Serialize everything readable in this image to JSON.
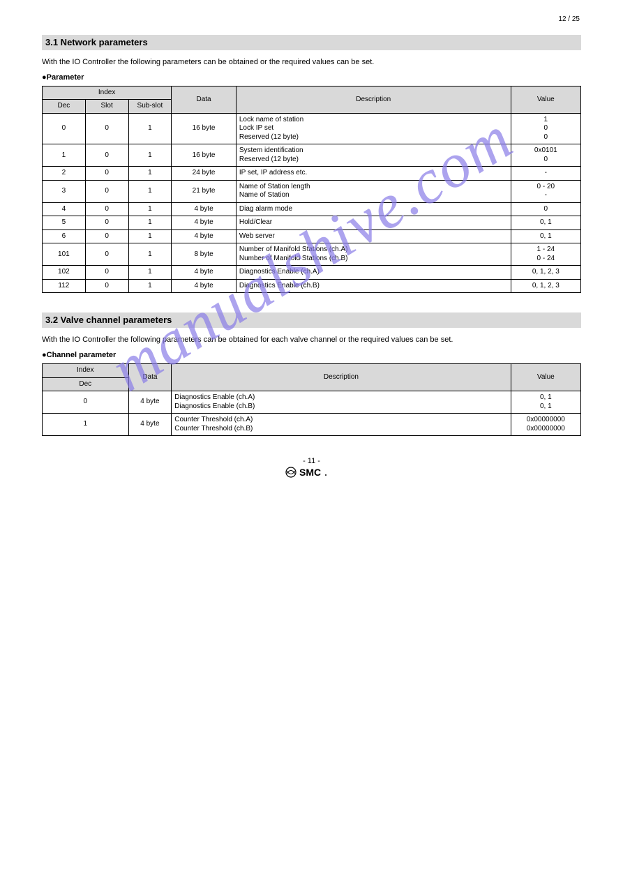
{
  "page_number_top": "12 / 25",
  "watermark_text": "manualshive.com",
  "section1": {
    "banner": "3.1 Network parameters",
    "intro": "With the IO Controller the following parameters can be obtained or the required values can be set.",
    "subhead": "●Parameter",
    "table": {
      "col_widths_pct": [
        8,
        8,
        8,
        12,
        51,
        13
      ],
      "header_row1": [
        "Index",
        "",
        "",
        "Data",
        "Description",
        "Value"
      ],
      "header_row2": [
        "Dec",
        "Slot",
        "Sub-slot",
        "",
        "",
        ""
      ],
      "rows": [
        {
          "cells": [
            "0",
            "0",
            "1",
            "16 byte",
            "Lock name of station\nLock IP set\nReserved (12 byte)",
            "1\n0\n0"
          ],
          "value_align": "center"
        },
        {
          "cells": [
            "1",
            "0",
            "1",
            "16 byte",
            "System identification\nReserved (12 byte)",
            "0x0101\n0"
          ],
          "value_align": "center"
        },
        {
          "cells": [
            "2",
            "0",
            "1",
            "24 byte",
            "IP set, IP address etc.",
            "-"
          ],
          "value_align": "center"
        },
        {
          "cells": [
            "3",
            "0",
            "1",
            "21 byte",
            "Name of Station length\nName of Station",
            "0 - 20\n-"
          ],
          "value_align": "center"
        },
        {
          "cells": [
            "4",
            "0",
            "1",
            "4 byte",
            "Diag alarm mode",
            "0"
          ],
          "value_align": "center"
        },
        {
          "cells": [
            "5",
            "0",
            "1",
            "4 byte",
            "Hold/Clear",
            "0, 1"
          ],
          "value_align": "center"
        },
        {
          "cells": [
            "6",
            "0",
            "1",
            "4 byte",
            "Web server",
            "0, 1"
          ],
          "value_align": "center"
        },
        {
          "cells": [
            "101",
            "0",
            "1",
            "8 byte",
            "Number of Manifold Stations (ch.A)\nNumber of Manifold Stations (ch.B)",
            "1 - 24\n0 - 24"
          ],
          "value_align": "center"
        },
        {
          "cells": [
            "102",
            "0",
            "1",
            "4 byte",
            "Diagnostics Enable (ch.A)",
            "0, 1, 2, 3"
          ],
          "value_align": "center"
        },
        {
          "cells": [
            "112",
            "0",
            "1",
            "4 byte",
            "Diagnostics Enable (ch.B)",
            "0, 1, 2, 3"
          ],
          "value_align": "center"
        }
      ]
    }
  },
  "section2": {
    "banner": "3.2 Valve channel parameters",
    "intro": "With the IO Controller the following parameters can be obtained for each valve channel or the required values can be set.",
    "subhead": "●Channel parameter",
    "table": {
      "col_widths_pct": [
        8,
        8,
        8,
        63,
        13
      ],
      "header_row1": [
        "Index",
        "Data",
        "Description",
        "Value"
      ],
      "header_row2": [
        "Dec",
        "",
        "",
        ""
      ],
      "merge_data_span": true,
      "rows": [
        {
          "cells": [
            "0",
            "4 byte",
            "Diagnostics Enable (ch.A)\nDiagnostics Enable (ch.B)",
            "0, 1\n0, 1"
          ]
        },
        {
          "cells": [
            "1",
            "4 byte",
            "Counter Threshold (ch.A)\nCounter Threshold (ch.B)",
            "0x00000000\n0x00000000"
          ]
        }
      ]
    }
  },
  "footer_page": "- 11 -",
  "colors": {
    "header_bg": "#d9d9d9",
    "border": "#000000",
    "text": "#000000",
    "watermark": "#8a7de8"
  }
}
